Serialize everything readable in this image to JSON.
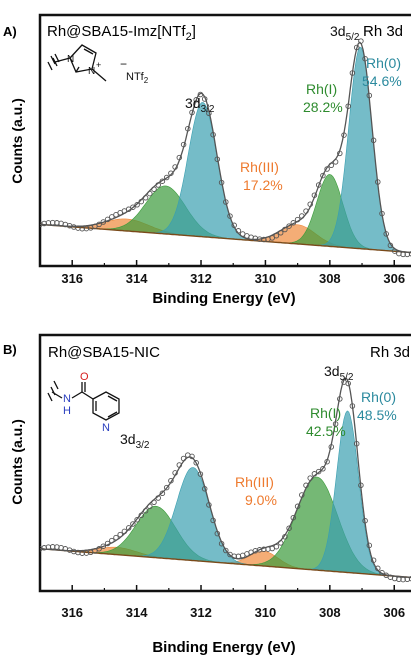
{
  "chart_data": [
    {
      "type": "area",
      "panel_label": "A)",
      "title": "Rh@SBA15-Imz[NTf",
      "title_sub": "2",
      "title_end": "]",
      "corner_label": "Rh 3d",
      "xlabel": "Binding Energy (eV)",
      "ylabel": "Counts (a.u.)",
      "xlim": [
        317.0,
        305.2
      ],
      "x_ticks": [
        "316",
        "314",
        "312",
        "310",
        "308",
        "306"
      ],
      "molecule": {
        "anion": "NTf",
        "anion_sub": "2",
        "minus": "−",
        "plus": "+"
      },
      "peak_labels": {
        "d32_main": "3d",
        "d32_sub": "3/2",
        "d52_main": "3d",
        "d52_sub": "5/2",
        "rh0_name": "Rh(0)",
        "rh0_pct": "54.6%",
        "rh1_name": "Rh(I)",
        "rh1_pct": "28.2%",
        "rh3_name": "Rh(III)",
        "rh3_pct": "17.2%"
      },
      "colors": {
        "rh0": "#3a9fb0",
        "rh1": "#3a9a3a",
        "rh3": "#f08a3c",
        "envelope": "#555555",
        "points": "#555555"
      },
      "background": {
        "x": [
          317.0,
          305.2
        ],
        "y": [
          0.14,
          0.02
        ]
      },
      "series": [
        {
          "component": "Rh(0)",
          "peaks": [
            {
              "center": 307.05,
              "height": 0.84,
              "fwhm": 0.85
            },
            {
              "center": 311.95,
              "height": 0.56,
              "fwhm": 1.05
            }
          ]
        },
        {
          "component": "Rh(I)",
          "peaks": [
            {
              "center": 308.0,
              "height": 0.3,
              "fwhm": 0.95
            },
            {
              "center": 313.1,
              "height": 0.2,
              "fwhm": 1.45
            }
          ]
        },
        {
          "component": "Rh(III)",
          "peaks": [
            {
              "center": 309.0,
              "height": 0.08,
              "fwhm": 1.3
            },
            {
              "center": 314.3,
              "height": 0.05,
              "fwhm": 1.6
            }
          ]
        }
      ]
    },
    {
      "type": "area",
      "panel_label": "B)",
      "title": "Rh@SBA15-NIC",
      "title_sub": "",
      "title_end": "",
      "corner_label": "Rh 3d",
      "xlabel": "Binding Energy (eV)",
      "ylabel": "Counts (a.u.)",
      "xlim": [
        317.0,
        305.2
      ],
      "x_ticks": [
        "316",
        "314",
        "312",
        "310",
        "308",
        "306"
      ],
      "molecule": {
        "o_atom": "O",
        "nh_atom": "H",
        "n_h": "N",
        "n_ring": "N"
      },
      "peak_labels": {
        "d32_main": "3d",
        "d32_sub": "3/2",
        "d52_main": "3d",
        "d52_sub": "5/2",
        "rh0_name": "Rh(0)",
        "rh0_pct": "48.5%",
        "rh1_name": "Rh(I)",
        "rh1_pct": "42.5%",
        "rh3_name": "Rh(III)",
        "rh3_pct": "9.0%"
      },
      "colors": {
        "rh0": "#3a9fb0",
        "rh1": "#3a9a3a",
        "rh3": "#f08a3c",
        "envelope": "#555555",
        "points": "#555555"
      },
      "background": {
        "x": [
          317.0,
          305.2
        ],
        "y": [
          0.14,
          0.02
        ]
      },
      "series": [
        {
          "component": "Rh(0)",
          "peaks": [
            {
              "center": 307.45,
              "height": 0.66,
              "fwhm": 0.8
            },
            {
              "center": 312.25,
              "height": 0.38,
              "fwhm": 1.2
            }
          ]
        },
        {
          "component": "Rh(I)",
          "peaks": [
            {
              "center": 308.4,
              "height": 0.38,
              "fwhm": 1.5
            },
            {
              "center": 313.4,
              "height": 0.21,
              "fwhm": 1.45
            }
          ]
        },
        {
          "component": "Rh(III)",
          "peaks": [
            {
              "center": 310.05,
              "height": 0.06,
              "fwhm": 1.05
            },
            {
              "center": 314.6,
              "height": 0.03,
              "fwhm": 1.4
            }
          ]
        }
      ]
    }
  ]
}
